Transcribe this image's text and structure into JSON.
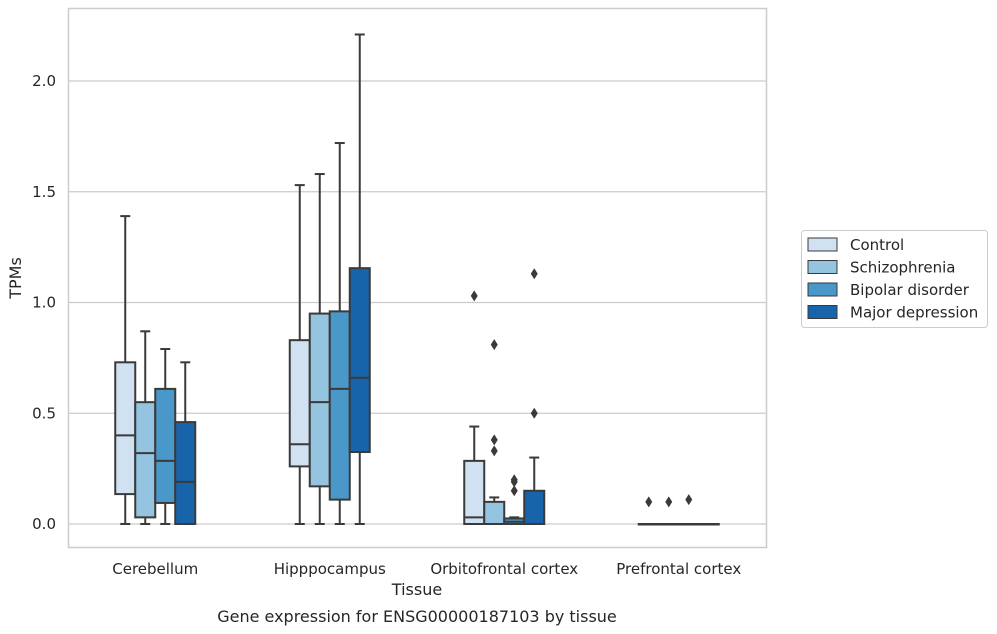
{
  "caption": "Gene expression for ENSG00000187103 by tissue",
  "chart_data": {
    "type": "box",
    "xlabel": "Tissue",
    "ylabel": "TPMs",
    "ylim": [
      -0.1,
      2.33
    ],
    "yticks": [
      "0.0",
      "0.5",
      "1.0",
      "1.5",
      "2.0"
    ],
    "grid": "horizontal",
    "legend_position": "right",
    "categories": [
      "Cerebellum",
      "Hipppocampus",
      "Orbitofrontal cortex",
      "Prefrontal cortex"
    ],
    "series": [
      {
        "name": "Control",
        "color": "#d0e1f2",
        "boxes": [
          {
            "whislo": 0.0,
            "q1": 0.135,
            "med": 0.4,
            "q3": 0.73,
            "whishi": 1.39,
            "fliers": []
          },
          {
            "whislo": 0.0,
            "q1": 0.26,
            "med": 0.36,
            "q3": 0.83,
            "whishi": 1.53,
            "fliers": []
          },
          {
            "whislo": 0.0,
            "q1": 0.0,
            "med": 0.03,
            "q3": 0.285,
            "whishi": 0.44,
            "fliers": [
              1.03
            ]
          },
          {
            "whislo": 0.0,
            "q1": 0.0,
            "med": 0.0,
            "q3": 0.0,
            "whishi": 0.0,
            "fliers": [
              0.1
            ]
          }
        ]
      },
      {
        "name": "Schizophrenia",
        "color": "#94c4df",
        "boxes": [
          {
            "whislo": 0.0,
            "q1": 0.03,
            "med": 0.32,
            "q3": 0.55,
            "whishi": 0.87,
            "fliers": []
          },
          {
            "whislo": 0.0,
            "q1": 0.17,
            "med": 0.55,
            "q3": 0.95,
            "whishi": 1.58,
            "fliers": []
          },
          {
            "whislo": 0.0,
            "q1": 0.0,
            "med": 0.0,
            "q3": 0.1,
            "whishi": 0.12,
            "fliers": [
              0.81,
              0.38,
              0.33
            ]
          },
          {
            "whislo": 0.0,
            "q1": 0.0,
            "med": 0.0,
            "q3": 0.0,
            "whishi": 0.0,
            "fliers": [
              0.1
            ]
          }
        ]
      },
      {
        "name": "Bipolar disorder",
        "color": "#4a98c9",
        "boxes": [
          {
            "whislo": 0.0,
            "q1": 0.095,
            "med": 0.285,
            "q3": 0.61,
            "whishi": 0.79,
            "fliers": []
          },
          {
            "whislo": 0.0,
            "q1": 0.11,
            "med": 0.61,
            "q3": 0.96,
            "whishi": 1.72,
            "fliers": []
          },
          {
            "whislo": 0.0,
            "q1": 0.0,
            "med": 0.01,
            "q3": 0.025,
            "whishi": 0.03,
            "fliers": [
              0.2,
              0.19,
              0.15
            ]
          },
          {
            "whislo": 0.0,
            "q1": 0.0,
            "med": 0.0,
            "q3": 0.0,
            "whishi": 0.0,
            "fliers": [
              0.11
            ]
          }
        ]
      },
      {
        "name": "Major depression",
        "color": "#1764ab",
        "boxes": [
          {
            "whislo": 0.0,
            "q1": 0.0,
            "med": 0.19,
            "q3": 0.46,
            "whishi": 0.73,
            "fliers": []
          },
          {
            "whislo": 0.0,
            "q1": 0.325,
            "med": 0.66,
            "q3": 1.155,
            "whishi": 2.21,
            "fliers": []
          },
          {
            "whislo": 0.0,
            "q1": 0.0,
            "med": 0.0,
            "q3": 0.15,
            "whishi": 0.3,
            "fliers": [
              1.13,
              0.5
            ]
          },
          {
            "whislo": 0.0,
            "q1": 0.0,
            "med": 0.0,
            "q3": 0.0,
            "whishi": 0.0,
            "fliers": []
          }
        ]
      }
    ]
  }
}
